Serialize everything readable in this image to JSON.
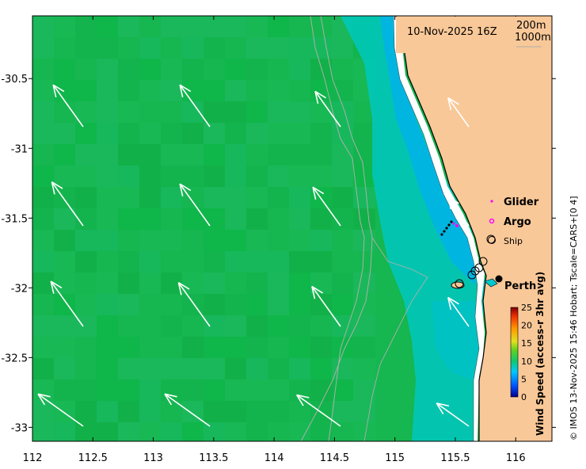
{
  "title": "10-Nov-2025 16Z",
  "depth_contours": [
    "200m",
    "1000m"
  ],
  "x_ticks": [
    {
      "value": 112,
      "label": "112"
    },
    {
      "value": 112.5,
      "label": "112.5"
    },
    {
      "value": 113,
      "label": "113"
    },
    {
      "value": 113.5,
      "label": "113.5"
    },
    {
      "value": 114,
      "label": "114"
    },
    {
      "value": 114.5,
      "label": "114.5"
    },
    {
      "value": 115,
      "label": "115"
    },
    {
      "value": 115.5,
      "label": "115.5"
    },
    {
      "value": 116,
      "label": "116"
    }
  ],
  "y_ticks": [
    {
      "value": -30.5,
      "label": "-30.5"
    },
    {
      "value": -31,
      "label": "-31"
    },
    {
      "value": -31.5,
      "label": "-31.5"
    },
    {
      "value": -32,
      "label": "-32"
    },
    {
      "value": -32.5,
      "label": "-32.5"
    },
    {
      "value": -33,
      "label": "-33"
    }
  ],
  "legend": {
    "glider": "Glider",
    "argo": "Argo",
    "ship": "Ship"
  },
  "city": "Perth",
  "colorbar": {
    "title": "Wind Speed (access-r 3hr avg)",
    "ticks": [
      "0",
      "5",
      "10",
      "15",
      "20",
      "25"
    ]
  },
  "credit": "© IMOS 13-Nov-2025 15:46 Hobart; Tscale=CARS+[0 4]",
  "colors": {
    "land": "#f9c898",
    "wind_green": "#16b650",
    "coast_cyan": "#00c8d0",
    "arrow": "#ffffff",
    "glider": "#ff00ff"
  }
}
